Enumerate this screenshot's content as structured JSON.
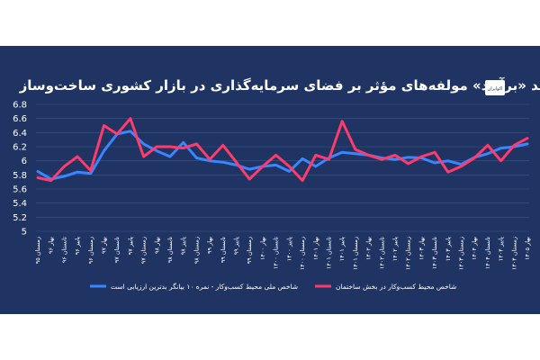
{
  "chart_data": {
    "type": "line",
    "title": "روند «برآیند» مولفه‌های مؤثر بر فضای سرمایه‌گذاری در بازار کشوری ساخت‌وساز",
    "logo_text": "اکوایران",
    "y_ticks": [
      "5",
      "5.2",
      "5.4",
      "5.6",
      "5.8",
      "6",
      "6.2",
      "6.4",
      "6.6",
      "6.8"
    ],
    "ylim": [
      5,
      6.8
    ],
    "grid": true,
    "legend_position": "bottom",
    "categories": [
      "زمستان ۹۵",
      "بهار ۹۶",
      "تابستان ۹۶",
      "پاییز ۹۶",
      "زمستان ۹۶",
      "بهار ۹۷",
      "تابستان ۹۷",
      "پاییز ۹۷",
      "زمستان ۹۷",
      "بهار ۹۸",
      "تابستان ۹۸",
      "پاییز ۹۸",
      "زمستان ۹۸",
      "بهار ۹۹",
      "تابستان ۹۹",
      "پاییز ۹۹",
      "زمستان ۹۹",
      "بهار ۱۴۰۰",
      "تابستان ۱۴۰۰",
      "پاییز ۱۴۰۰",
      "زمستان ۱۴۰۰",
      "بهار ۱۴۰۱",
      "تابستان ۱۴۰۱",
      "پاییز ۱۴۰۱",
      "زمستان ۱۴۰۱",
      "بهار ۱۴۰۲",
      "تابستان ۱۴۰۲",
      "پاییز ۱۴۰۲",
      "زمستان ۱۴۰۲",
      "بهار ۱۴۰۳",
      "تابستان ۱۴۰۳",
      "پاییز ۱۴۰۳",
      "زمستان ۱۴۰۳",
      "بهار ۱۴۰۴",
      "تابستان ۱۴۰۴",
      "پاییز ۱۴۰۴",
      "زمستان ۱۴۰۴",
      "بهار ۱۴۰۵"
    ],
    "series": [
      {
        "name": "شاخص ملی محیط کسب‌وکار - نمره ۱۰ بیانگر بدترین ارزیابی است",
        "color": "#3a86ff",
        "values": [
          5.85,
          5.74,
          5.78,
          5.84,
          5.82,
          6.14,
          6.38,
          6.42,
          6.24,
          6.14,
          6.06,
          6.26,
          6.04,
          6.0,
          5.98,
          5.94,
          5.88,
          5.92,
          5.94,
          5.85,
          6.03,
          5.92,
          6.04,
          6.12,
          6.1,
          6.08,
          6.04,
          6.02,
          6.05,
          6.04,
          5.97,
          6.0,
          5.95,
          6.05,
          6.1,
          6.18,
          6.2,
          6.24
        ]
      },
      {
        "name": "شاخص محیط کسب‌وکار در بخش ساختمان",
        "color": "#ff3b6b",
        "values": [
          5.76,
          5.72,
          5.92,
          6.06,
          5.86,
          6.5,
          6.38,
          6.6,
          6.06,
          6.2,
          6.2,
          6.18,
          6.24,
          6.02,
          6.22,
          5.98,
          5.74,
          5.92,
          6.08,
          5.92,
          5.72,
          6.08,
          6.02,
          6.56,
          6.16,
          6.08,
          6.02,
          6.08,
          5.96,
          6.06,
          6.12,
          5.84,
          5.92,
          6.04,
          6.22,
          6.0,
          6.22,
          6.32
        ]
      }
    ]
  }
}
